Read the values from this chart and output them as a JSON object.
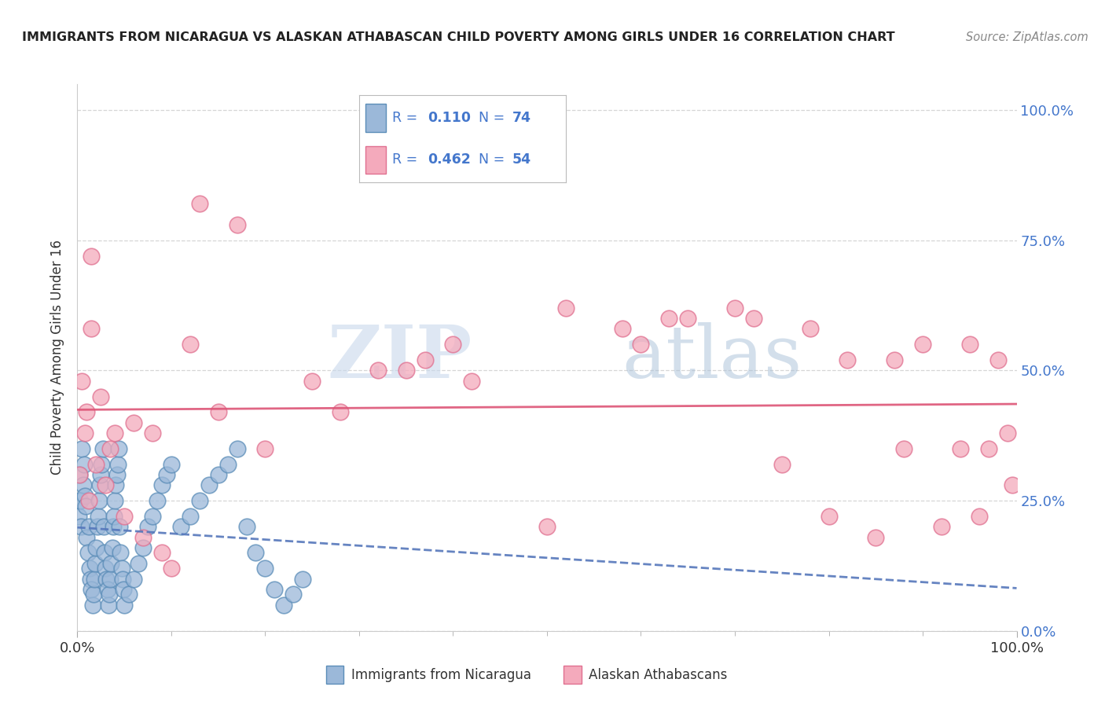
{
  "title": "IMMIGRANTS FROM NICARAGUA VS ALASKAN ATHABASCAN CHILD POVERTY AMONG GIRLS UNDER 16 CORRELATION CHART",
  "source": "Source: ZipAtlas.com",
  "ylabel": "Child Poverty Among Girls Under 16",
  "blue_R": "0.110",
  "blue_N": "74",
  "pink_R": "0.462",
  "pink_N": "54",
  "blue_label": "Immigrants from Nicaragua",
  "pink_label": "Alaskan Athabascans",
  "watermark_ZIP": "ZIP",
  "watermark_atlas": "atlas",
  "blue_color": "#9BB8D9",
  "pink_color": "#F4AABC",
  "blue_edge_color": "#5B8DB8",
  "pink_edge_color": "#E07090",
  "blue_line_color": "#5577BB",
  "pink_line_color": "#DD5577",
  "label_blue_color": "#4477CC",
  "background_color": "#FFFFFF",
  "grid_color": "#CCCCCC",
  "title_color": "#222222",
  "source_color": "#888888",
  "ylabel_color": "#333333",
  "tick_color": "#4477CC",
  "blue_scatter_x": [
    0.001,
    0.002,
    0.003,
    0.004,
    0.005,
    0.006,
    0.007,
    0.008,
    0.009,
    0.01,
    0.011,
    0.012,
    0.013,
    0.014,
    0.015,
    0.016,
    0.017,
    0.018,
    0.019,
    0.02,
    0.021,
    0.022,
    0.023,
    0.024,
    0.025,
    0.026,
    0.027,
    0.028,
    0.029,
    0.03,
    0.031,
    0.032,
    0.033,
    0.034,
    0.035,
    0.036,
    0.037,
    0.038,
    0.039,
    0.04,
    0.041,
    0.042,
    0.043,
    0.044,
    0.045,
    0.046,
    0.047,
    0.048,
    0.049,
    0.05,
    0.055,
    0.06,
    0.065,
    0.07,
    0.075,
    0.08,
    0.085,
    0.09,
    0.095,
    0.1,
    0.11,
    0.12,
    0.13,
    0.14,
    0.15,
    0.16,
    0.17,
    0.18,
    0.19,
    0.2,
    0.21,
    0.22,
    0.23,
    0.24
  ],
  "blue_scatter_y": [
    0.22,
    0.3,
    0.25,
    0.2,
    0.35,
    0.28,
    0.32,
    0.26,
    0.24,
    0.18,
    0.15,
    0.2,
    0.12,
    0.1,
    0.08,
    0.05,
    0.07,
    0.1,
    0.13,
    0.16,
    0.2,
    0.22,
    0.25,
    0.28,
    0.3,
    0.32,
    0.35,
    0.2,
    0.15,
    0.12,
    0.1,
    0.08,
    0.05,
    0.07,
    0.1,
    0.13,
    0.16,
    0.2,
    0.22,
    0.25,
    0.28,
    0.3,
    0.32,
    0.35,
    0.2,
    0.15,
    0.12,
    0.1,
    0.08,
    0.05,
    0.07,
    0.1,
    0.13,
    0.16,
    0.2,
    0.22,
    0.25,
    0.28,
    0.3,
    0.32,
    0.2,
    0.22,
    0.25,
    0.28,
    0.3,
    0.32,
    0.35,
    0.2,
    0.15,
    0.12,
    0.08,
    0.05,
    0.07,
    0.1
  ],
  "pink_scatter_x": [
    0.002,
    0.005,
    0.008,
    0.01,
    0.012,
    0.015,
    0.02,
    0.025,
    0.03,
    0.035,
    0.05,
    0.06,
    0.08,
    0.1,
    0.12,
    0.15,
    0.2,
    0.25,
    0.28,
    0.32,
    0.35,
    0.37,
    0.4,
    0.42,
    0.5,
    0.52,
    0.58,
    0.6,
    0.63,
    0.65,
    0.7,
    0.72,
    0.75,
    0.78,
    0.8,
    0.82,
    0.85,
    0.87,
    0.88,
    0.9,
    0.92,
    0.94,
    0.95,
    0.96,
    0.97,
    0.98,
    0.99,
    0.995,
    0.015,
    0.04,
    0.07,
    0.09,
    0.13,
    0.17
  ],
  "pink_scatter_y": [
    0.3,
    0.48,
    0.38,
    0.42,
    0.25,
    0.72,
    0.32,
    0.45,
    0.28,
    0.35,
    0.22,
    0.4,
    0.38,
    0.12,
    0.55,
    0.42,
    0.35,
    0.48,
    0.42,
    0.5,
    0.5,
    0.52,
    0.55,
    0.48,
    0.2,
    0.62,
    0.58,
    0.55,
    0.6,
    0.6,
    0.62,
    0.6,
    0.32,
    0.58,
    0.22,
    0.52,
    0.18,
    0.52,
    0.35,
    0.55,
    0.2,
    0.35,
    0.55,
    0.22,
    0.35,
    0.52,
    0.38,
    0.28,
    0.58,
    0.38,
    0.18,
    0.15,
    0.82,
    0.78
  ]
}
